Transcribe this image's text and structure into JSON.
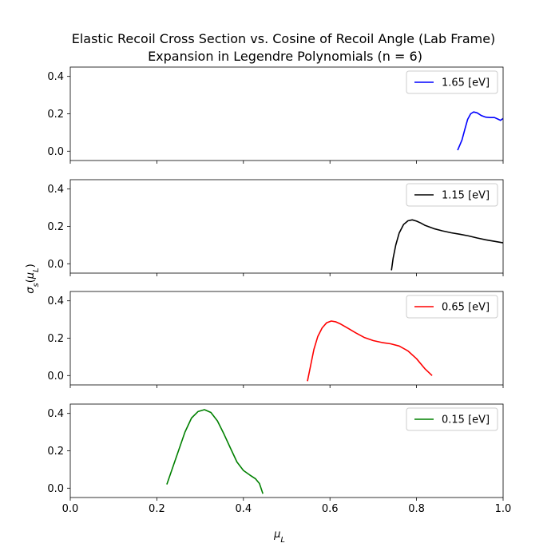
{
  "chart_data": {
    "type": "line",
    "title": "Elastic Recoil Cross Section vs. Cosine of Recoil Angle (Lab Frame)",
    "subtitle": "Expansion in Legendre Polynomials (n = 6)",
    "xlabel": "μL",
    "ylabel": "σs(μL)",
    "xlim": [
      0.0,
      1.0
    ],
    "ylim": [
      -0.05,
      0.45
    ],
    "xticks": [
      0.0,
      0.2,
      0.4,
      0.6,
      0.8,
      1.0
    ],
    "xtick_labels": [
      "0.0",
      "0.2",
      "0.4",
      "0.6",
      "0.8",
      "1.0"
    ],
    "yticks": [
      0.0,
      0.2,
      0.4
    ],
    "ytick_labels": [
      "0.0",
      "0.2",
      "0.4"
    ],
    "grid": false,
    "legend_position": "upper right",
    "sharex": true,
    "series": [
      {
        "name": "1.65 [eV]",
        "color": "#0000ff",
        "x": [
          0.895,
          0.905,
          0.912,
          0.918,
          0.925,
          0.932,
          0.94,
          0.95,
          0.96,
          0.97,
          0.98,
          0.988,
          0.994,
          1.0
        ],
        "y": [
          0.005,
          0.06,
          0.12,
          0.17,
          0.2,
          0.21,
          0.205,
          0.19,
          0.182,
          0.18,
          0.18,
          0.172,
          0.165,
          0.175
        ]
      },
      {
        "name": "1.15 [eV]",
        "color": "#000000",
        "x": [
          0.742,
          0.746,
          0.752,
          0.76,
          0.77,
          0.78,
          0.79,
          0.8,
          0.81,
          0.82,
          0.84,
          0.86,
          0.88,
          0.9,
          0.92,
          0.94,
          0.96,
          0.98,
          1.0
        ],
        "y": [
          -0.035,
          0.03,
          0.1,
          0.165,
          0.21,
          0.23,
          0.235,
          0.228,
          0.218,
          0.205,
          0.188,
          0.176,
          0.166,
          0.158,
          0.149,
          0.138,
          0.128,
          0.12,
          0.112
        ]
      },
      {
        "name": "0.65 [eV]",
        "color": "#ff0000",
        "x": [
          0.548,
          0.555,
          0.563,
          0.572,
          0.582,
          0.592,
          0.603,
          0.613,
          0.625,
          0.64,
          0.66,
          0.68,
          0.7,
          0.72,
          0.74,
          0.76,
          0.78,
          0.8,
          0.82,
          0.836
        ],
        "y": [
          -0.03,
          0.05,
          0.14,
          0.21,
          0.255,
          0.282,
          0.292,
          0.288,
          0.275,
          0.255,
          0.228,
          0.203,
          0.187,
          0.177,
          0.17,
          0.158,
          0.132,
          0.09,
          0.035,
          0.0
        ]
      },
      {
        "name": "0.15 [eV]",
        "color": "#008000",
        "x": [
          0.223,
          0.235,
          0.25,
          0.265,
          0.28,
          0.295,
          0.31,
          0.325,
          0.34,
          0.355,
          0.37,
          0.385,
          0.4,
          0.415,
          0.428,
          0.437,
          0.445
        ],
        "y": [
          0.02,
          0.1,
          0.2,
          0.3,
          0.375,
          0.41,
          0.42,
          0.405,
          0.36,
          0.29,
          0.215,
          0.14,
          0.095,
          0.07,
          0.05,
          0.025,
          -0.03
        ]
      }
    ]
  }
}
